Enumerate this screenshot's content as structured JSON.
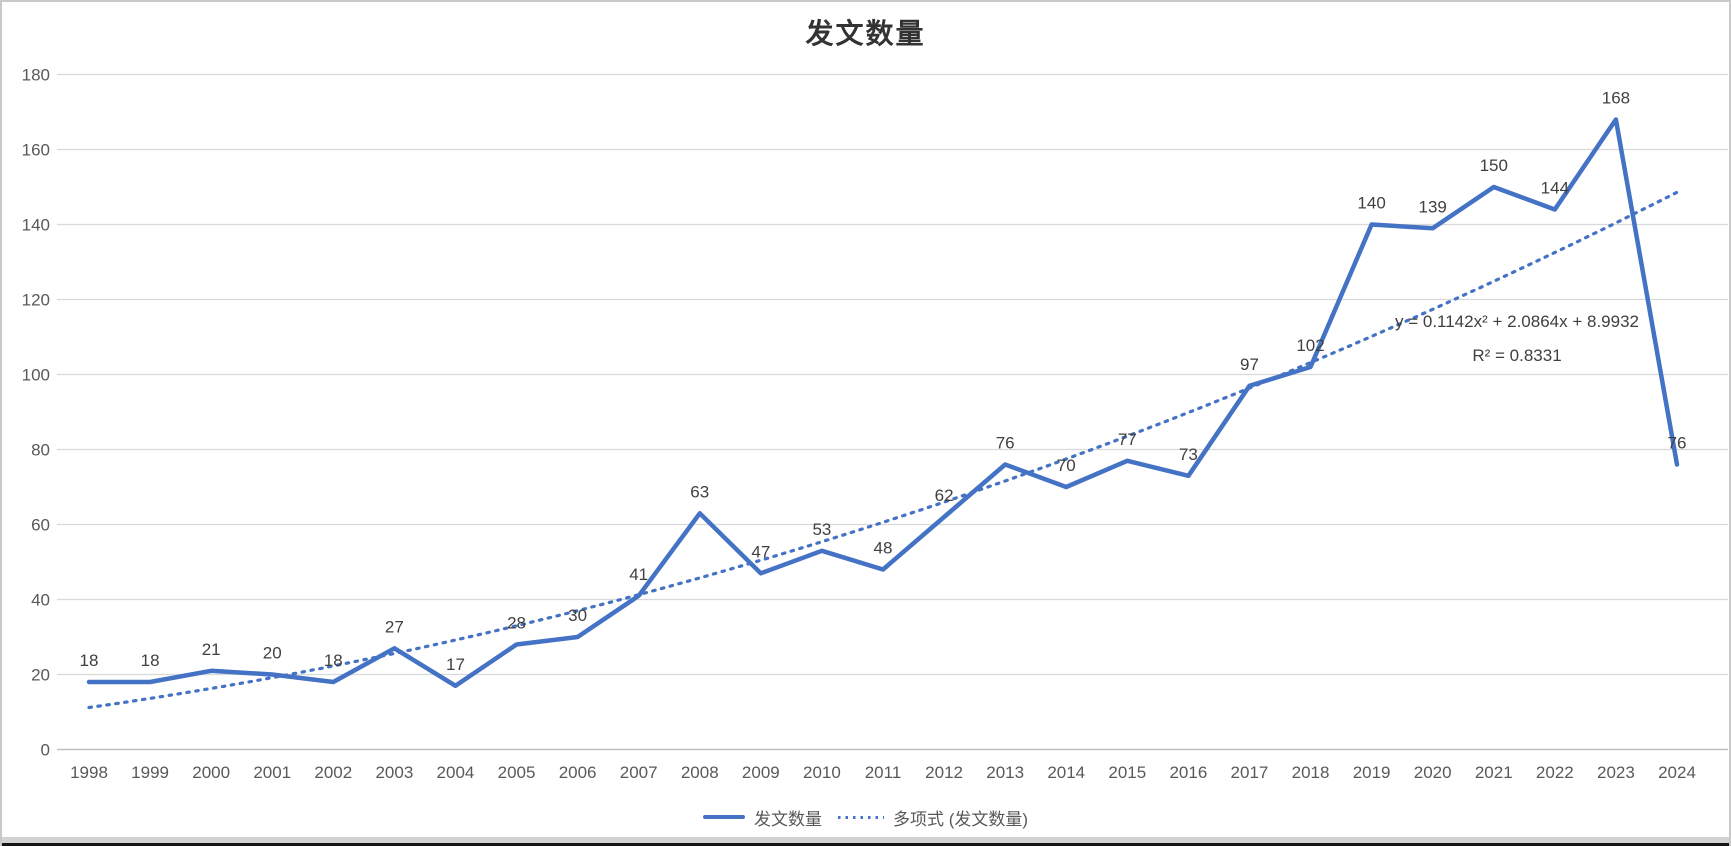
{
  "chart_data": {
    "type": "line",
    "title": "发文数量",
    "categories": [
      1998,
      1999,
      2000,
      2001,
      2002,
      2003,
      2004,
      2005,
      2006,
      2007,
      2008,
      2009,
      2010,
      2011,
      2012,
      2013,
      2014,
      2015,
      2016,
      2017,
      2018,
      2019,
      2020,
      2021,
      2022,
      2023,
      2024
    ],
    "series": [
      {
        "name": "发文数量",
        "values": [
          18,
          18,
          21,
          20,
          18,
          27,
          17,
          28,
          30,
          41,
          63,
          47,
          53,
          48,
          62,
          76,
          70,
          77,
          73,
          97,
          102,
          140,
          139,
          150,
          144,
          168,
          76
        ],
        "color": "#4472C4",
        "style": "solid"
      }
    ],
    "trendline": {
      "name": "多项式 (发文数量)",
      "kind": "polynomial",
      "coefficients": {
        "a2": 0.1142,
        "a1": 2.0864,
        "a0": 8.9932
      },
      "equation_label": "y = 0.1142x² + 2.0864x + 8.9932",
      "r2_label": "R² = 0.8331",
      "color": "#4472C4",
      "style": "dotted"
    },
    "y_axis": {
      "min": 0,
      "max": 180,
      "step": 20,
      "tick_labels": [
        "0",
        "20",
        "40",
        "60",
        "80",
        "100",
        "120",
        "140",
        "160",
        "180"
      ]
    },
    "x_axis_labels": [
      "1998",
      "1999",
      "2000",
      "2001",
      "2002",
      "2003",
      "2004",
      "2005",
      "2006",
      "2007",
      "2008",
      "2009",
      "2010",
      "2011",
      "2012",
      "2013",
      "2014",
      "2015",
      "2016",
      "2017",
      "2018",
      "2019",
      "2020",
      "2021",
      "2022",
      "2023",
      "2024"
    ],
    "grid": true,
    "legend_position": "bottom",
    "colors": {
      "gridline": "#d9d9d9",
      "axis_line": "#bfbfbf",
      "tick_label": "#595959",
      "data_label": "#404040",
      "title": "#333333",
      "equation": "#404040",
      "legend_text": "#595959"
    }
  }
}
